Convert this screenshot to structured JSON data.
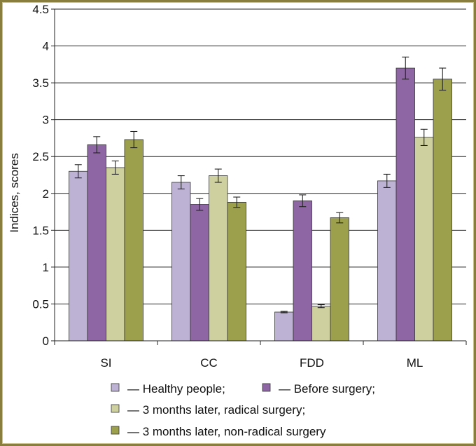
{
  "chart_data": {
    "type": "bar",
    "title": "",
    "xlabel": "",
    "ylabel": "Indices, scores",
    "ylim": [
      0,
      4.5
    ],
    "yticks": [
      "0",
      "0.5",
      "1",
      "1.5",
      "2",
      "2.5",
      "3",
      "3.5",
      "4",
      "4.5"
    ],
    "grid": true,
    "legend_position": "bottom",
    "categories": [
      "SI",
      "CC",
      "FDD",
      "ML"
    ],
    "series": [
      {
        "name": "Healthy people;",
        "legend_label": "— Healthy people;",
        "color": "#bdb2d3",
        "values": [
          2.3,
          2.15,
          0.39,
          2.17
        ],
        "errors": [
          0.09,
          0.09,
          0.01,
          0.09
        ]
      },
      {
        "name": "Before surgery;",
        "legend_label": "— Before surgery;",
        "color": "#8e66a4",
        "values": [
          2.66,
          1.85,
          1.9,
          3.7
        ],
        "errors": [
          0.11,
          0.08,
          0.08,
          0.15
        ]
      },
      {
        "name": "3 months later, radical surgery;",
        "legend_label": "— 3 months later, radical surgery;",
        "color": "#ced19f",
        "values": [
          2.35,
          2.24,
          0.47,
          2.76
        ],
        "errors": [
          0.09,
          0.09,
          0.02,
          0.11
        ]
      },
      {
        "name": "3 months later, non-radical surgery",
        "legend_label": "— 3 months later, non-radical surgery",
        "color": "#9ca04c",
        "values": [
          2.73,
          1.88,
          1.67,
          3.55
        ],
        "errors": [
          0.11,
          0.07,
          0.07,
          0.15
        ]
      }
    ]
  }
}
